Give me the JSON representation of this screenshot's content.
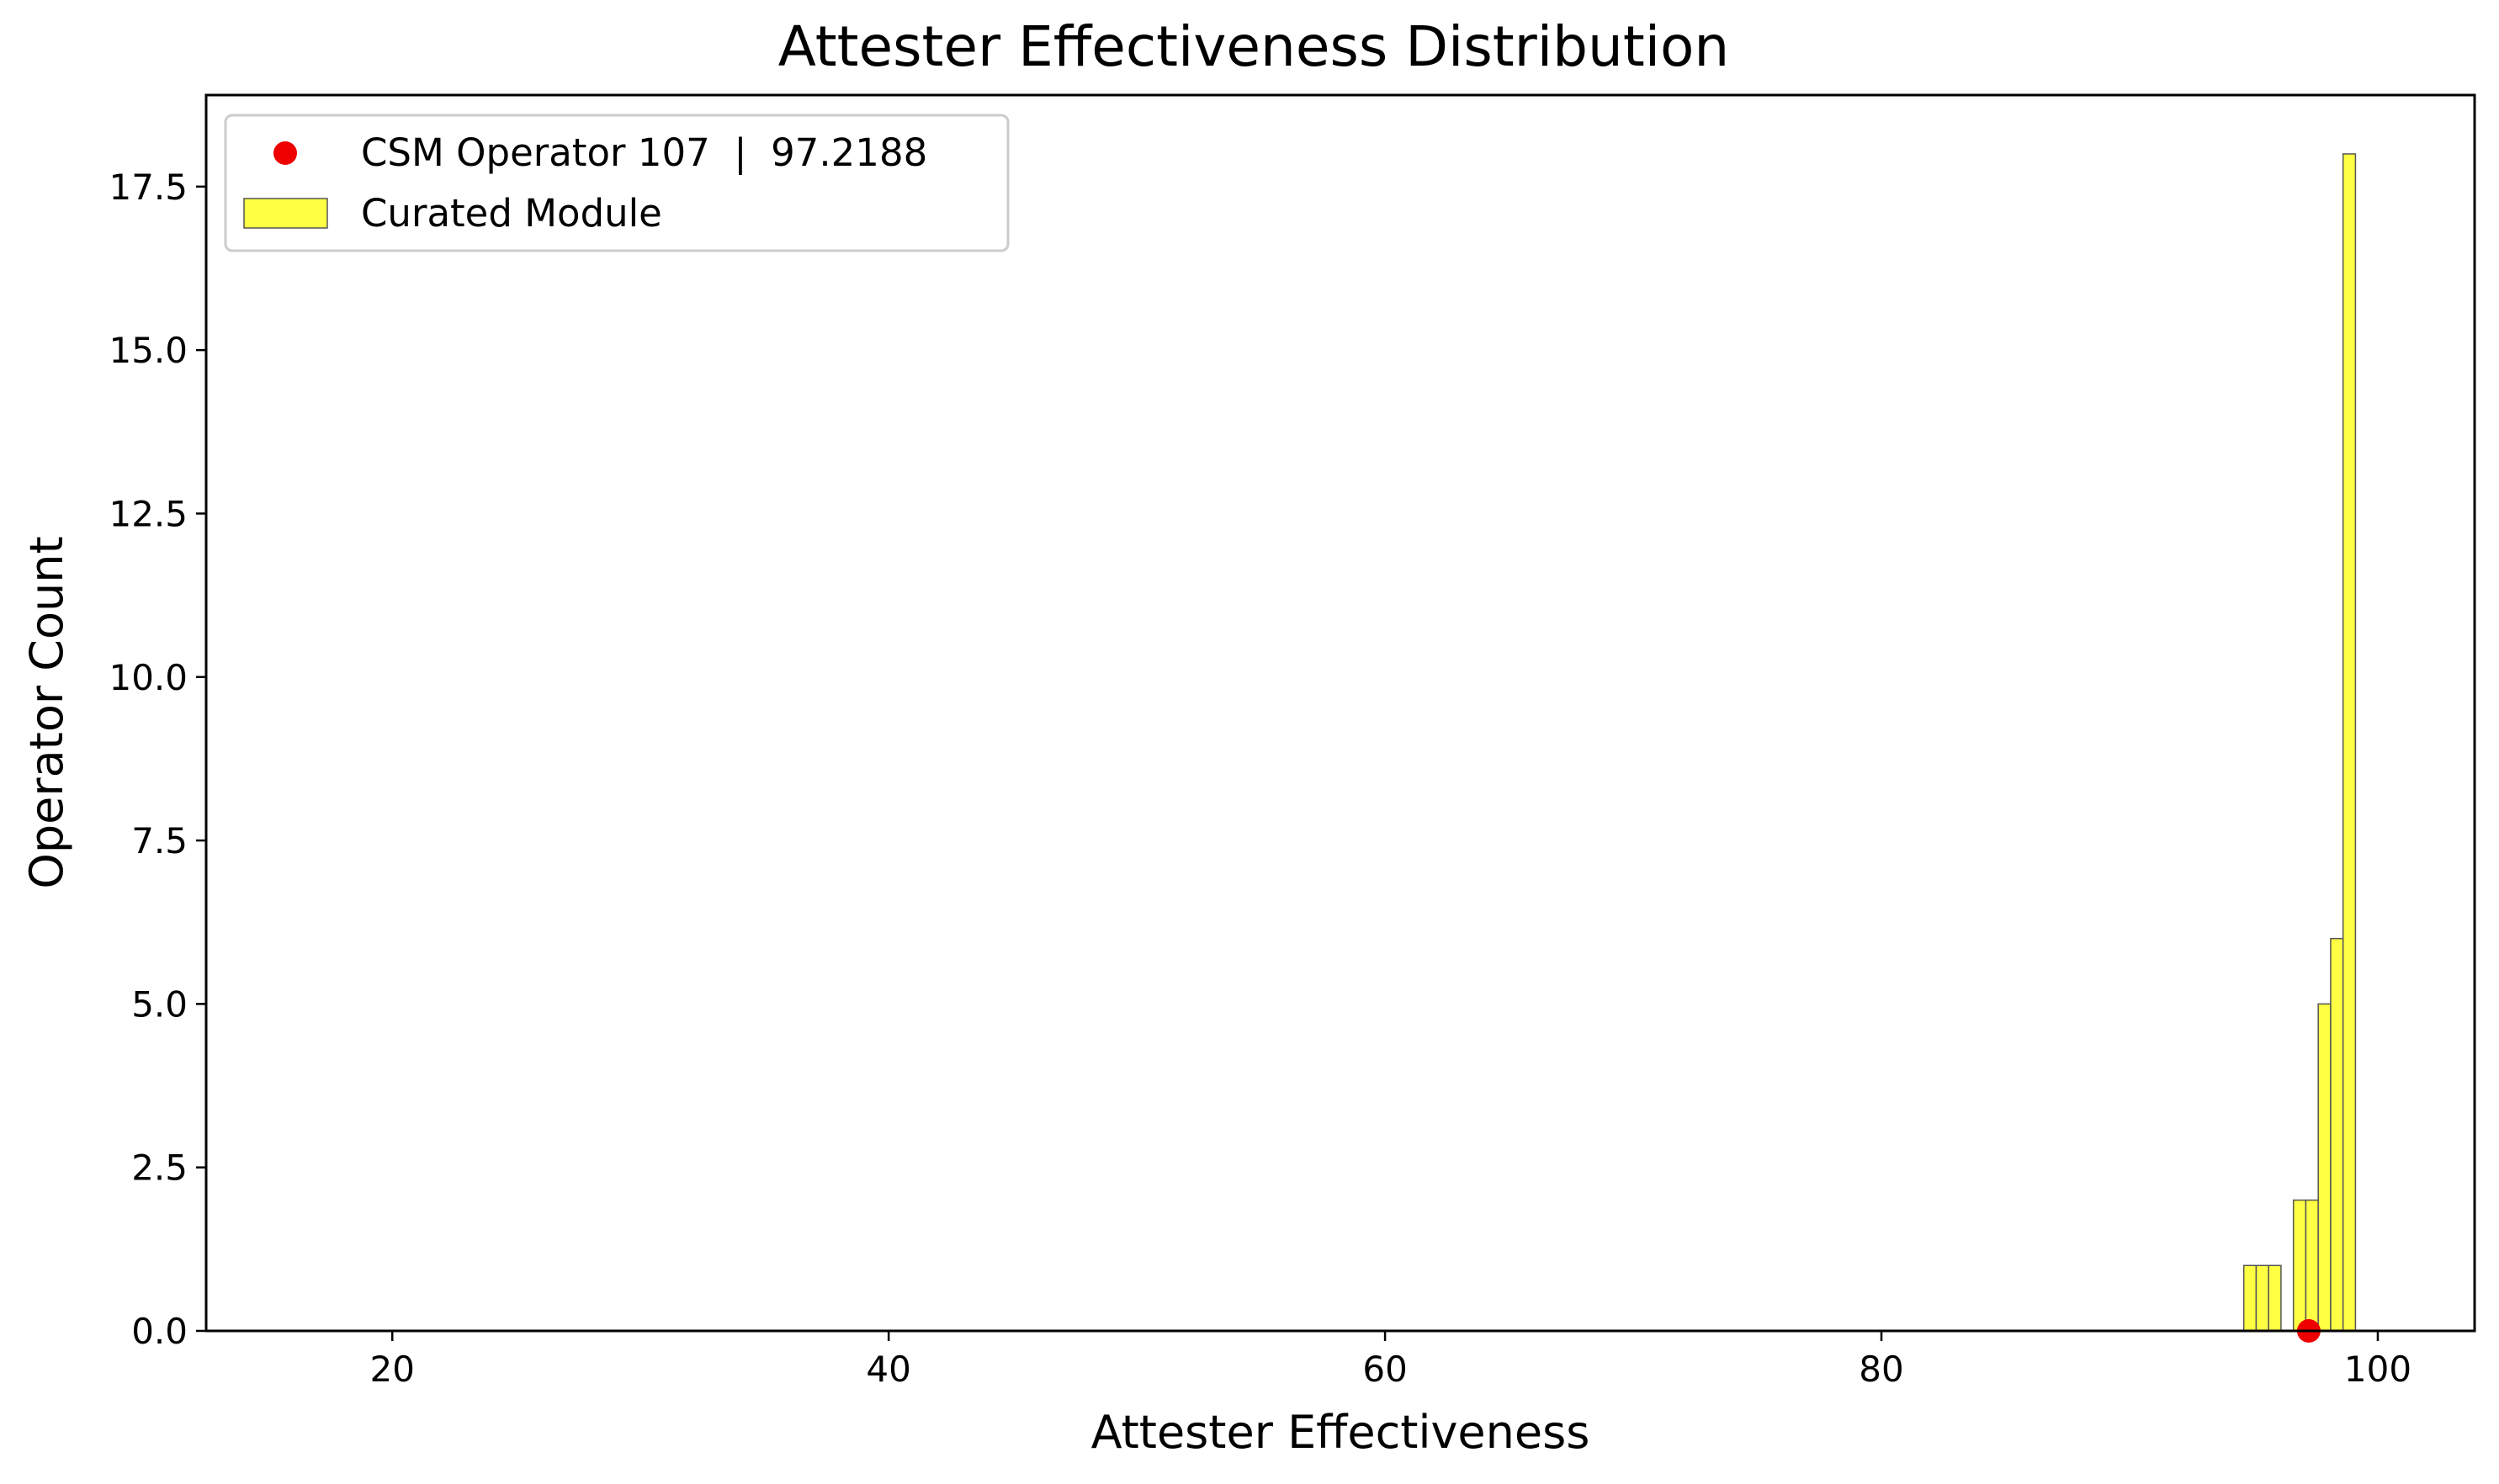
{
  "chart_data": {
    "type": "bar",
    "title": "Attester Effectiveness Distribution",
    "xlabel": "Attester Effectiveness",
    "ylabel": "Operator Count",
    "xlim": [
      12.5,
      103.9
    ],
    "ylim": [
      0,
      18.9
    ],
    "xticks": [
      20,
      40,
      60,
      80,
      100
    ],
    "xtick_labels": [
      "20",
      "40",
      "60",
      "80",
      "100"
    ],
    "yticks": [
      0,
      2.5,
      5,
      7.5,
      10,
      12.5,
      15,
      17.5
    ],
    "ytick_labels": [
      "0.0",
      "2.5",
      "5.0",
      "7.5",
      "10.0",
      "12.5",
      "15.0",
      "17.5"
    ],
    "grid": false,
    "legend_position": "upper-left",
    "series": [
      {
        "name": "Curated Module",
        "kind": "histogram",
        "color": "#ffff44",
        "edge_color": "#555555",
        "bin_width": 0.5,
        "bins": [
          {
            "x": 94.6,
            "count": 1
          },
          {
            "x": 95.1,
            "count": 1
          },
          {
            "x": 95.6,
            "count": 1
          },
          {
            "x": 96.6,
            "count": 2
          },
          {
            "x": 97.1,
            "count": 2
          },
          {
            "x": 97.6,
            "count": 5
          },
          {
            "x": 98.1,
            "count": 6
          },
          {
            "x": 98.6,
            "count": 18
          }
        ]
      }
    ],
    "highlight": {
      "label": "CSM Operator 107  |  97.2188",
      "x": 97.2188,
      "y": 0,
      "color": "#ee0000"
    }
  }
}
